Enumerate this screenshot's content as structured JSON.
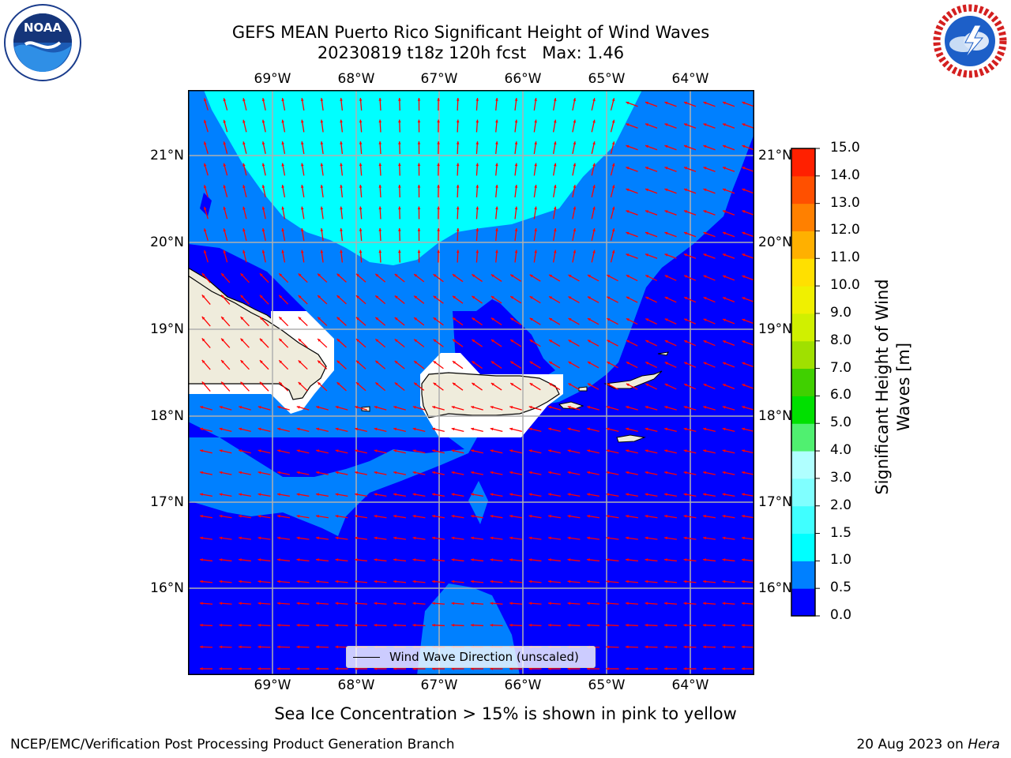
{
  "title_line1": "GEFS MEAN Puerto Rico Significant Height of Wind Waves",
  "title_line2": "20230819 t18z 120h fcst   Max: 1.46",
  "lon_ticks": [
    "69°W",
    "68°W",
    "67°W",
    "66°W",
    "65°W",
    "64°W"
  ],
  "lat_ticks": [
    "21°N",
    "20°N",
    "19°N",
    "18°N",
    "17°N",
    "16°N"
  ],
  "colorbar": {
    "label_line1": "Significant Height of Wind",
    "label_line2": "Waves [m]",
    "ticks": [
      "0.0",
      "0.5",
      "1.0",
      "1.5",
      "2.0",
      "3.0",
      "4.0",
      "5.0",
      "6.0",
      "7.0",
      "8.0",
      "9.0",
      "10.0",
      "11.0",
      "12.0",
      "13.0",
      "14.0",
      "15.0"
    ],
    "colors": [
      "#0000ff",
      "#0080ff",
      "#00ffff",
      "#40ffff",
      "#80ffff",
      "#b0ffff",
      "#50f070",
      "#00e000",
      "#40d000",
      "#a0e000",
      "#d0f000",
      "#f0f000",
      "#ffe000",
      "#ffb000",
      "#ff8000",
      "#ff5000",
      "#ff2000",
      "#ff0000"
    ]
  },
  "legend_label": "Wind Wave Direction (unscaled)",
  "caption": "Sea Ice Concentration > 15% is shown in pink to yellow",
  "footer_left": "NCEP/EMC/Verification Post Processing Product Generation Branch",
  "footer_right_date": "20 Aug 2023 on",
  "footer_right_machine": "Hera",
  "logo_left": "NOAA",
  "logo_left_ring": "NATIONAL OCEANIC AND ATMOSPHERIC ADMINISTRATION",
  "logo_right_ring": "NATIONAL WEATHER SERVICE",
  "colors": {
    "sea_low": "#0000ff",
    "sea_mid": "#0080ff",
    "sea_high": "#00ffff",
    "land": "#efecdc",
    "arrow": "#ff0000",
    "grid": "#b0b0b0"
  }
}
